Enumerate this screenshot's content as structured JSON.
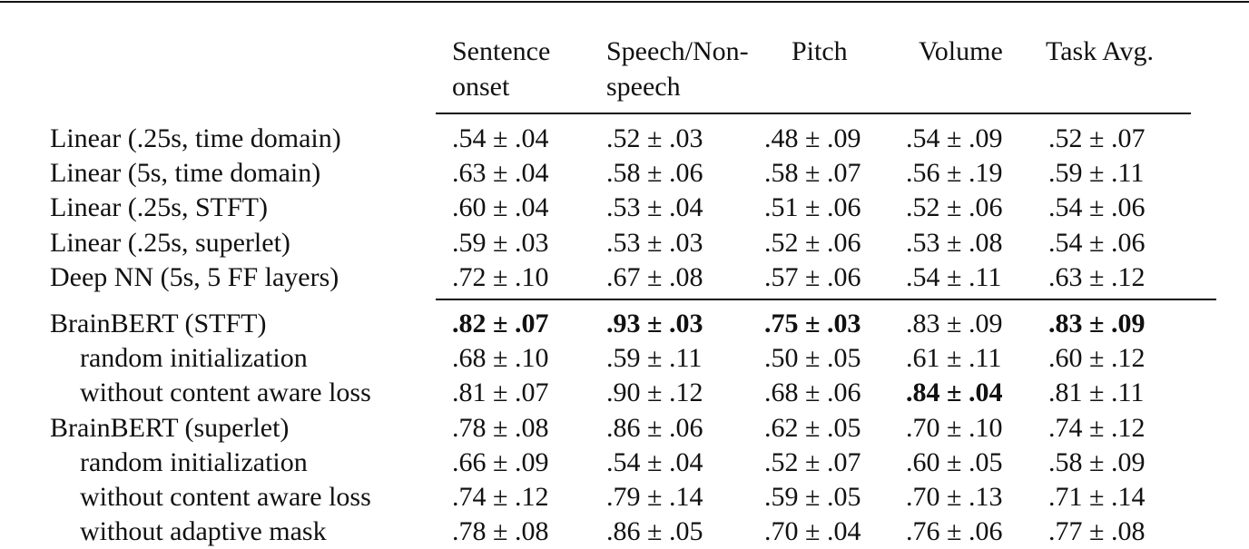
{
  "table": {
    "header": [
      [
        "Sentence",
        "onset"
      ],
      [
        "Speech/Non-",
        "speech"
      ],
      [
        "Pitch"
      ],
      [
        "Volume"
      ],
      [
        "Task Avg."
      ]
    ],
    "groups": [
      [
        {
          "label": "Linear (.25s, time domain)",
          "indent": false,
          "cells": [
            ".54 ± .04",
            ".52 ± .03",
            ".48 ± .09",
            ".54 ± .09",
            ".52 ± .07"
          ],
          "bold": []
        },
        {
          "label": "Linear (5s, time domain)",
          "indent": false,
          "cells": [
            ".63 ± .04",
            ".58 ± .06",
            ".58 ± .07",
            ".56 ± .19",
            ".59 ± .11"
          ],
          "bold": []
        },
        {
          "label": "Linear (.25s, STFT)",
          "indent": false,
          "cells": [
            ".60 ± .04",
            ".53 ± .04",
            ".51 ± .06",
            ".52 ± .06",
            ".54 ± .06"
          ],
          "bold": []
        },
        {
          "label": "Linear (.25s, superlet)",
          "indent": false,
          "cells": [
            ".59 ± .03",
            ".53 ± .03",
            ".52 ± .06",
            ".53 ± .08",
            ".54 ± .06"
          ],
          "bold": []
        },
        {
          "label": "Deep NN (5s, 5 FF layers)",
          "indent": false,
          "cells": [
            ".72 ± .10",
            ".67 ± .08",
            ".57 ± .06",
            ".54 ± .11",
            ".63 ± .12"
          ],
          "bold": []
        }
      ],
      [
        {
          "label": "BrainBERT (STFT)",
          "indent": false,
          "cells": [
            ".82 ± .07",
            ".93 ± .03",
            ".75 ± .03",
            ".83 ± .09",
            ".83 ± .09"
          ],
          "bold": [
            0,
            1,
            2,
            4
          ]
        },
        {
          "label": "random initialization",
          "indent": true,
          "cells": [
            ".68 ± .10",
            ".59 ± .11",
            ".50 ± .05",
            ".61 ± .11",
            ".60 ± .12"
          ],
          "bold": []
        },
        {
          "label": "without content aware loss",
          "indent": true,
          "cells": [
            ".81 ± .07",
            ".90 ± .12",
            ".68 ± .06",
            ".84 ± .04",
            ".81 ± .11"
          ],
          "bold": [
            3
          ]
        },
        {
          "label": "BrainBERT (superlet)",
          "indent": false,
          "cells": [
            ".78 ± .08",
            ".86 ± .06",
            ".62 ± .05",
            ".70 ± .10",
            ".74 ± .12"
          ],
          "bold": []
        },
        {
          "label": "random initialization",
          "indent": true,
          "cells": [
            ".66 ± .09",
            ".54 ± .04",
            ".52 ± .07",
            ".60 ± .05",
            ".58 ± .09"
          ],
          "bold": []
        },
        {
          "label": "without content aware loss",
          "indent": true,
          "cells": [
            ".74 ± .12",
            ".79 ± .14",
            ".59 ± .05",
            ".70 ± .13",
            ".71 ± .14"
          ],
          "bold": []
        },
        {
          "label": "without adaptive mask",
          "indent": true,
          "cells": [
            ".78 ± .08",
            ".86 ± .05",
            ".70 ± .04",
            ".76 ± .06",
            ".77 ± .08"
          ],
          "bold": []
        }
      ]
    ]
  }
}
